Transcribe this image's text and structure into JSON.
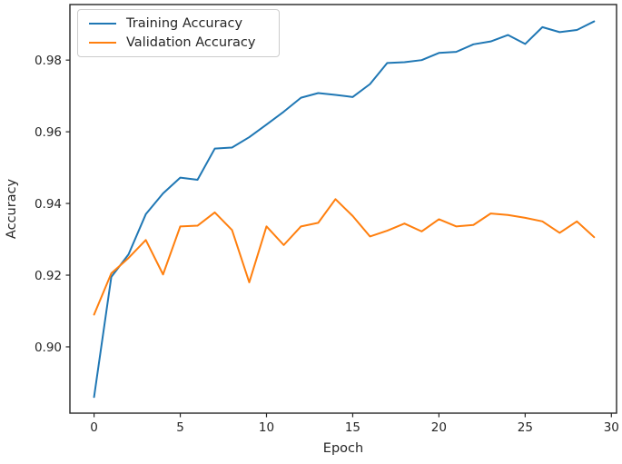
{
  "chart_data": {
    "type": "line",
    "title": "",
    "xlabel": "Epoch",
    "ylabel": "Accuracy",
    "grid": false,
    "legend_position": "upper left",
    "xlim": [
      -1.4,
      30.3
    ],
    "ylim": [
      0.8815,
      0.9955
    ],
    "x_ticks": [
      0,
      5,
      10,
      15,
      20,
      25,
      30
    ],
    "x_tick_labels": [
      "0",
      "5",
      "10",
      "15",
      "20",
      "25",
      "30"
    ],
    "y_ticks": [
      0.9,
      0.92,
      0.94,
      0.96,
      0.98
    ],
    "y_tick_labels": [
      "0.90",
      "0.92",
      "0.94",
      "0.96",
      "0.98"
    ],
    "x": [
      0,
      1,
      2,
      3,
      4,
      5,
      6,
      7,
      8,
      9,
      10,
      11,
      12,
      13,
      14,
      15,
      16,
      17,
      18,
      19,
      20,
      21,
      22,
      23,
      24,
      25,
      26,
      27,
      28,
      29
    ],
    "series": [
      {
        "name": "Training Accuracy",
        "color": "#1f77b4",
        "values": [
          0.886,
          0.9195,
          0.9258,
          0.937,
          0.9428,
          0.9472,
          0.9466,
          0.9553,
          0.9556,
          0.9585,
          0.962,
          0.9656,
          0.9695,
          0.9708,
          0.9703,
          0.9697,
          0.9733,
          0.9792,
          0.9794,
          0.98,
          0.982,
          0.9823,
          0.9844,
          0.9852,
          0.987,
          0.9845,
          0.9892,
          0.9878,
          0.9884,
          0.9908
        ]
      },
      {
        "name": "Validation Accuracy",
        "color": "#ff7f0e",
        "values": [
          0.909,
          0.9205,
          0.9248,
          0.9298,
          0.9202,
          0.9336,
          0.9338,
          0.9375,
          0.9326,
          0.918,
          0.9336,
          0.9284,
          0.9336,
          0.9346,
          0.9412,
          0.9365,
          0.9308,
          0.9324,
          0.9344,
          0.9322,
          0.9356,
          0.9336,
          0.934,
          0.9372,
          0.9368,
          0.936,
          0.935,
          0.9318,
          0.935,
          0.9306
        ]
      }
    ],
    "axis_color": "#262626",
    "line_width": 2
  }
}
